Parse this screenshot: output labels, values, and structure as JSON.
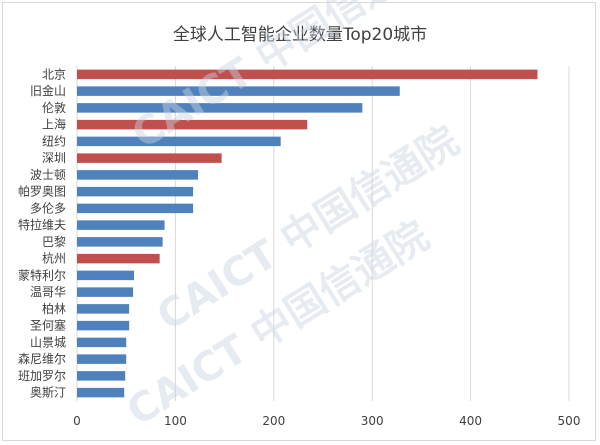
{
  "chart_data": {
    "type": "bar",
    "orientation": "horizontal",
    "title": "全球人工智能企业数量Top20城市",
    "categories": [
      "北京",
      "旧金山",
      "伦敦",
      "上海",
      "纽约",
      "深圳",
      "波士顿",
      "帕罗奥图",
      "多伦多",
      "特拉维夫",
      "巴黎",
      "杭州",
      "蒙特利尔",
      "温哥华",
      "柏林",
      "圣何塞",
      "山景城",
      "森尼维尔",
      "班加罗尔",
      "奥斯汀"
    ],
    "values": [
      468,
      328,
      290,
      234,
      207,
      147,
      123,
      118,
      118,
      89,
      87,
      84,
      58,
      57,
      53,
      53,
      50,
      50,
      49,
      48
    ],
    "highlight": [
      true,
      false,
      false,
      true,
      false,
      true,
      false,
      false,
      false,
      false,
      false,
      true,
      false,
      false,
      false,
      false,
      false,
      false,
      false,
      false
    ],
    "xlim": [
      0,
      500
    ],
    "xticks": [
      0,
      100,
      200,
      300,
      400,
      500
    ],
    "grid": true,
    "legend": "none",
    "colors": {
      "default": "#4f81bd",
      "highlight": "#c0504d",
      "grid": "#d9d9d9",
      "text": "#404040"
    },
    "watermark": "CAICT 中国信通院"
  }
}
